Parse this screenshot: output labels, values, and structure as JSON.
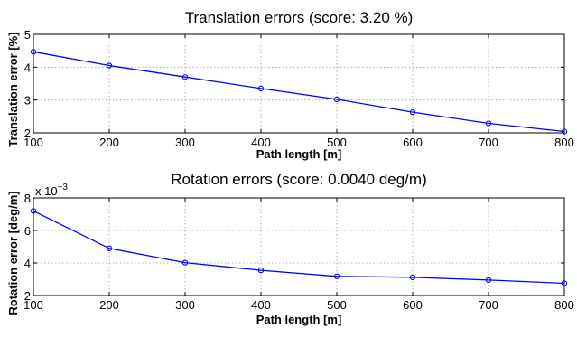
{
  "chart_data": [
    {
      "type": "line",
      "title": "Translation errors (score: 3.20 %)",
      "xlabel": "Path length [m]",
      "ylabel": "Translation error [%]",
      "x": [
        100,
        200,
        300,
        400,
        500,
        600,
        700,
        800
      ],
      "series": [
        {
          "values": [
            4.47,
            4.05,
            3.7,
            3.35,
            3.02,
            2.63,
            2.29,
            2.04
          ],
          "color": "#0000ff"
        }
      ],
      "xlim": [
        100,
        800
      ],
      "ylim": [
        2,
        5
      ],
      "xticks": [
        "100",
        "200",
        "300",
        "400",
        "500",
        "600",
        "700",
        "800"
      ],
      "yticks": [
        "2",
        "3",
        "4",
        "5"
      ],
      "grid": true
    },
    {
      "type": "line",
      "title": "Rotation errors (score: 0.0040 deg/m)",
      "xlabel": "Path length [m]",
      "ylabel": "Rotation error [deg/m]",
      "scale_label": "x 10",
      "scale_exponent": "−3",
      "x": [
        100,
        200,
        300,
        400,
        500,
        600,
        700,
        800
      ],
      "series": [
        {
          "values": [
            7.2,
            4.9,
            4.02,
            3.55,
            3.18,
            3.12,
            2.95,
            2.75
          ],
          "color": "#0000ff"
        }
      ],
      "xlim": [
        100,
        800
      ],
      "ylim": [
        2,
        8
      ],
      "xticks": [
        "100",
        "200",
        "300",
        "400",
        "500",
        "600",
        "700",
        "800"
      ],
      "yticks": [
        "2",
        "4",
        "6",
        "8"
      ],
      "grid": true
    }
  ]
}
